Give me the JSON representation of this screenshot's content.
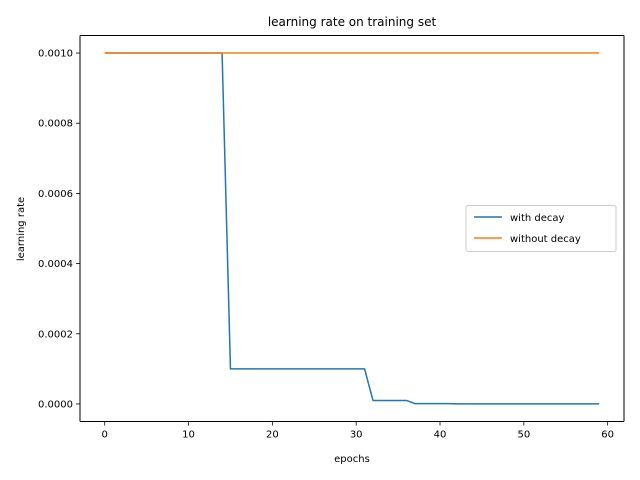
{
  "chart_data": {
    "type": "line",
    "title": "learning rate on training set",
    "xlabel": "epochs",
    "ylabel": "learning rate",
    "xlim": [
      -2.95,
      61.95
    ],
    "ylim": [
      -5e-05,
      0.00105
    ],
    "xticks": [
      0,
      10,
      20,
      30,
      40,
      50,
      60
    ],
    "yticks": [
      0.0,
      0.0002,
      0.0004,
      0.0006,
      0.0008,
      0.001
    ],
    "ytick_labels": [
      "0.0000",
      "0.0002",
      "0.0004",
      "0.0006",
      "0.0008",
      "0.0010"
    ],
    "xtick_labels": [
      "0",
      "10",
      "20",
      "30",
      "40",
      "50",
      "60"
    ],
    "grid": false,
    "legend_position": "center-right",
    "series": [
      {
        "name": "with decay",
        "color": "#1f77b4",
        "x": [
          0,
          14,
          15,
          31,
          32,
          36,
          37,
          41,
          42,
          59
        ],
        "y": [
          0.001,
          0.001,
          0.0001,
          0.0001,
          1e-05,
          1e-05,
          1e-06,
          1e-06,
          1e-07,
          1e-07
        ]
      },
      {
        "name": "without decay",
        "color": "#ff7f0e",
        "x": [
          0,
          59
        ],
        "y": [
          0.001,
          0.001
        ]
      }
    ]
  }
}
